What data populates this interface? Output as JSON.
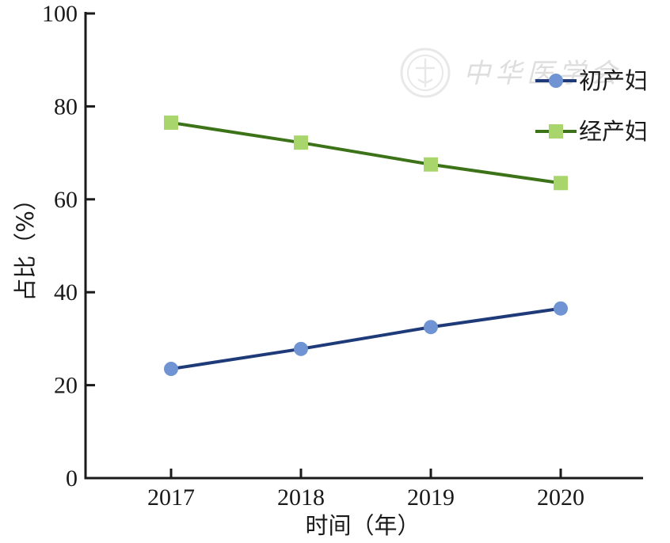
{
  "chart_data": {
    "type": "line",
    "title": "",
    "xlabel": "时间（年）",
    "ylabel": "占比（%）",
    "categories": [
      "2017",
      "2018",
      "2019",
      "2020"
    ],
    "ylim": [
      0,
      100
    ],
    "yticks": [
      "0",
      "20",
      "40",
      "60",
      "80",
      "100"
    ],
    "grid": false,
    "legend_position": "top-right",
    "series": [
      {
        "name": "初产妇",
        "values": [
          23.5,
          27.8,
          32.5,
          36.5
        ],
        "line_color": "#1f3a78",
        "marker_color": "#6f93d3",
        "marker": "circle"
      },
      {
        "name": "经产妇",
        "values": [
          76.5,
          72.2,
          67.5,
          63.5
        ],
        "line_color": "#3d7318",
        "marker_color": "#a8d66d",
        "marker": "square"
      }
    ],
    "watermark_text": "中华医学会"
  }
}
